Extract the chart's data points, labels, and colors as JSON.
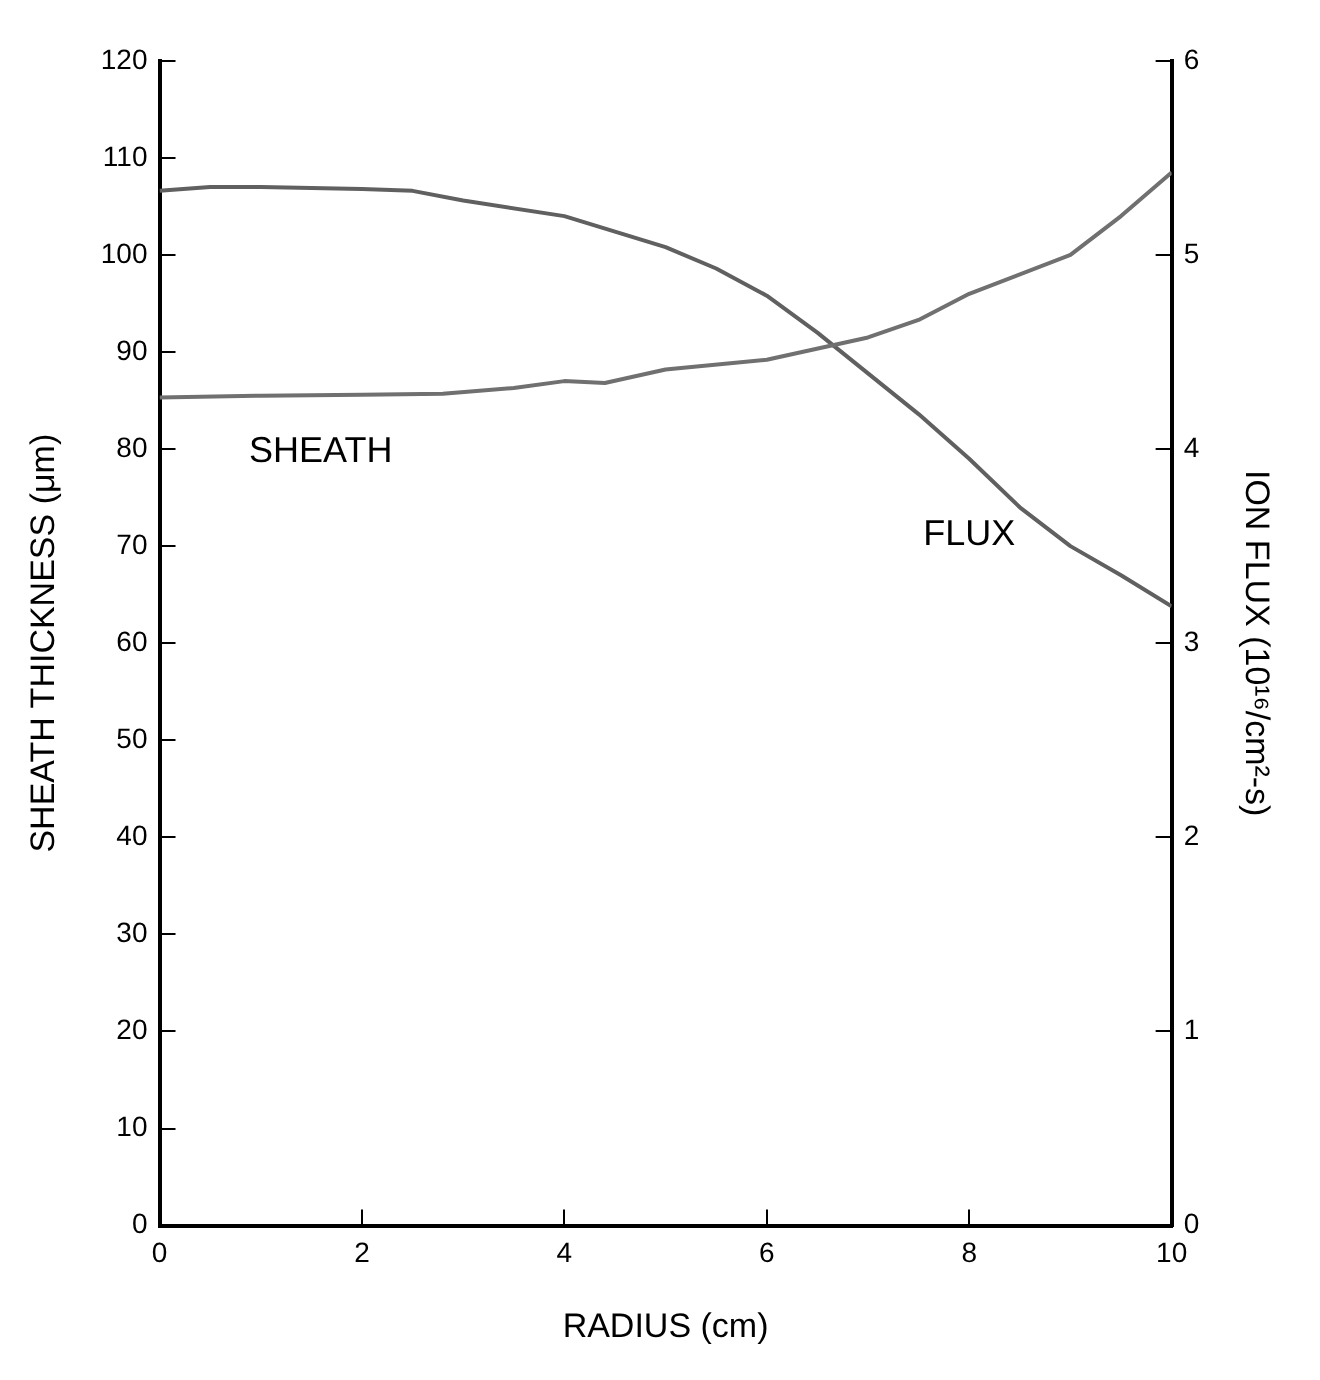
{
  "chart_data": {
    "type": "line",
    "xlabel": "RADIUS (cm)",
    "ylabel": "SHEATH THICKNESS (μm)",
    "y2label": "ION FLUX (10¹⁶/cm²-s)",
    "xlim": [
      0,
      10
    ],
    "xticks": [
      0,
      2,
      4,
      6,
      8,
      10
    ],
    "ylim": [
      0,
      120
    ],
    "yticks": [
      0,
      10,
      20,
      30,
      40,
      50,
      60,
      70,
      80,
      90,
      100,
      110,
      120
    ],
    "y2lim": [
      0,
      6
    ],
    "y2ticks": [
      0,
      1,
      2,
      3,
      4,
      5,
      6
    ],
    "grid": false,
    "legend": false,
    "marker": "none",
    "line_style": "solid",
    "series": [
      {
        "name": "SHEATH",
        "color": "#707070",
        "x": [
          0,
          1,
          2,
          2.8,
          3.5,
          4,
          4.4,
          5,
          6,
          7,
          7.5,
          8,
          9,
          9.5,
          10
        ],
        "values": [
          85.3,
          85.5,
          85.6,
          85.7,
          86.3,
          87,
          86.8,
          88.2,
          89.2,
          91.5,
          93.3,
          96,
          100,
          104,
          108.5
        ]
      },
      {
        "name": "FLUX",
        "color": "#606060",
        "axis": "y2",
        "x": [
          0,
          0.5,
          1,
          2,
          2.5,
          3,
          4,
          5,
          5.5,
          6,
          6.5,
          7,
          7.5,
          8,
          8.5,
          9,
          9.5,
          10
        ],
        "values": [
          5.33,
          5.35,
          5.35,
          5.34,
          5.33,
          5.28,
          5.2,
          5.04,
          4.93,
          4.79,
          4.6,
          4.39,
          4.18,
          3.95,
          3.7,
          3.5,
          3.35,
          3.19
        ]
      }
    ]
  }
}
